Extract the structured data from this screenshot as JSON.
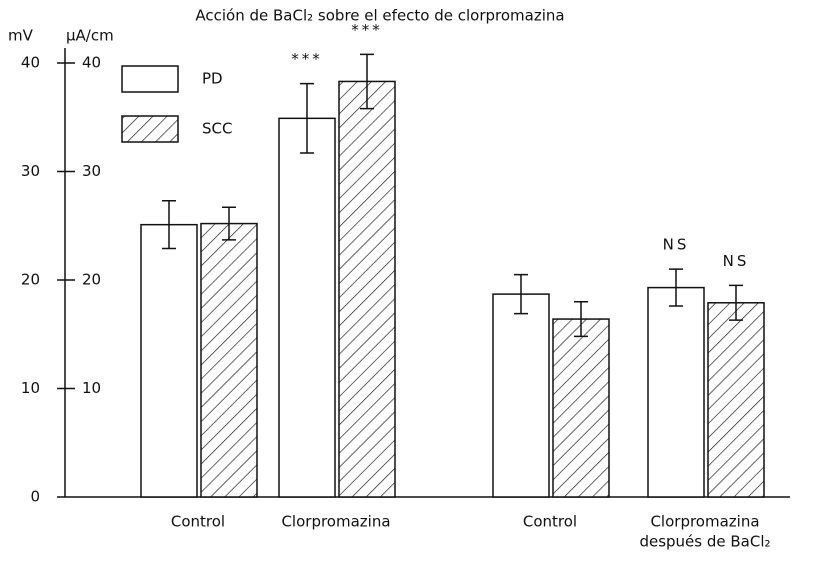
{
  "chart_data": {
    "type": "bar",
    "title": "Acción de BaCl₂ sobre el efecto de clorpromazina",
    "ylabel": "mV",
    "y2label": "µA/cm",
    "categories": [
      "Control",
      "Clorpromazina",
      "Control",
      [
        "Clorpromazina",
        "después de BaCl₂"
      ]
    ],
    "series": [
      {
        "name": "PD",
        "color": "#ffffff",
        "pattern": "none",
        "values": [
          25.1,
          34.9,
          18.7,
          19.3
        ],
        "errors": [
          2.2,
          3.2,
          1.8,
          1.7
        ]
      },
      {
        "name": "SCC",
        "color": "#ffffff",
        "pattern": "hatch",
        "axis": "y2",
        "values": [
          25.2,
          38.3,
          16.4,
          17.9
        ],
        "errors": [
          1.5,
          2.5,
          1.6,
          1.6
        ]
      }
    ],
    "annotations": [
      {
        "text": "***",
        "category": 1,
        "series": 0
      },
      {
        "text": "***",
        "category": 1,
        "series": 1
      },
      {
        "text": "NS",
        "category": 3,
        "series": 0
      },
      {
        "text": "NS",
        "category": 3,
        "series": 1
      }
    ],
    "ylim": [
      0,
      40
    ],
    "yticks": [
      0,
      10,
      20,
      30,
      40
    ],
    "y2lim": [
      0,
      40
    ],
    "y2ticks": [
      10,
      20,
      30,
      40
    ],
    "legend": "upper left",
    "grid": false
  }
}
